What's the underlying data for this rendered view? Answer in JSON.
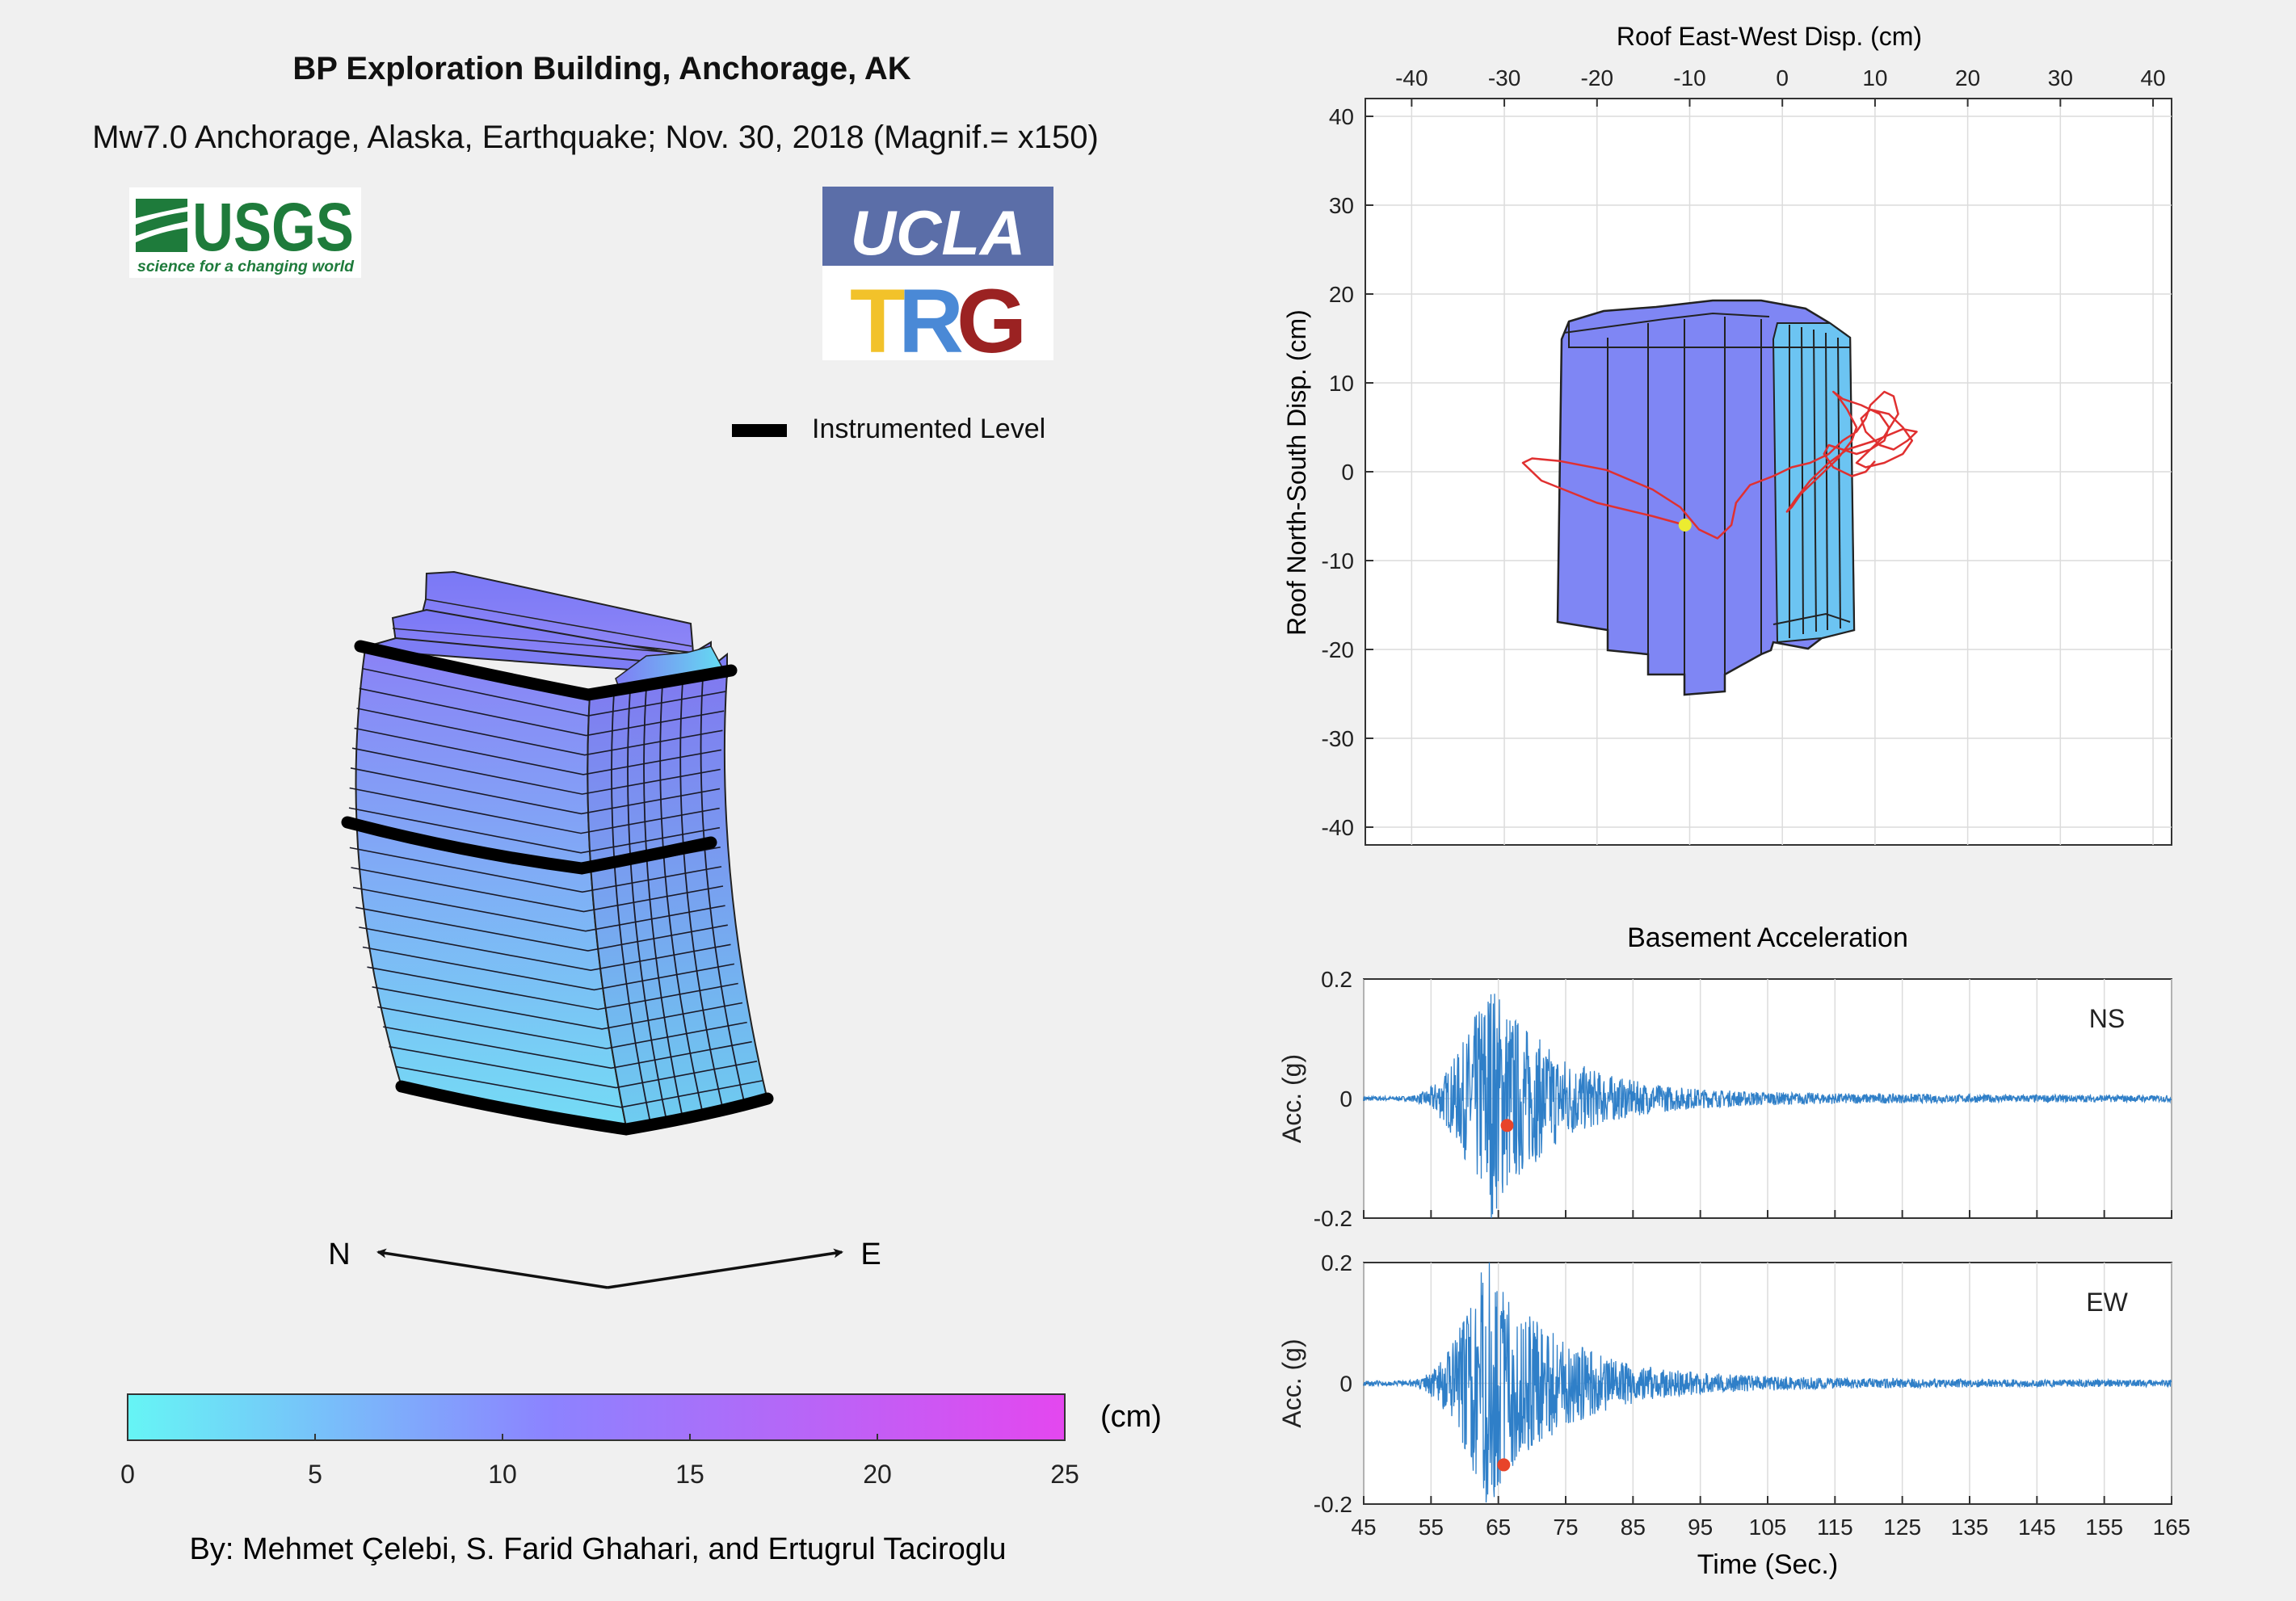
{
  "header": {
    "title": "BP Exploration Building, Anchorage, AK",
    "subtitle": "Mw7.0 Anchorage, Alaska, Earthquake; Nov. 30,  2018 (Magnif.= x150)"
  },
  "logos": {
    "usgs_text": "USGS",
    "usgs_tagline": "science for a changing world",
    "ucla_text": "UCLA",
    "trg_t": "T",
    "trg_r": "R",
    "trg_g": "G"
  },
  "legend": {
    "instrumented_label": "Instrumented Level"
  },
  "compass": {
    "north": "N",
    "east": "E"
  },
  "colorbar": {
    "unit": "(cm)",
    "ticks": [
      "0",
      "5",
      "10",
      "15",
      "20",
      "25"
    ],
    "min": 0,
    "max": 25,
    "start_color": "#66f5f5",
    "mid_color": "#8c83ff",
    "end_color": "#e447ef"
  },
  "credits": "By: Mehmet Çelebi, S. Farid Ghahari, and Ertugrul Taciroglu",
  "colors": {
    "building_top": "#8a82f6",
    "building_bottom": "#74dcf5",
    "orbit_trace": "#e03030",
    "trace": "#2f7fc8",
    "marker_current": "#e8442a",
    "marker_roof": "#ecec30"
  },
  "chart_data": [
    {
      "type": "scatter",
      "title": "",
      "xlabel": "Roof East-West Disp. (cm)",
      "ylabel": "Roof North-South Disp. (cm)",
      "xlim": [
        -45,
        42
      ],
      "ylim": [
        -42,
        42
      ],
      "x_ticks": [
        "-40",
        "-30",
        "-20",
        "-10",
        "0",
        "10",
        "20",
        "30",
        "40"
      ],
      "y_ticks": [
        "40",
        "30",
        "20",
        "10",
        "0",
        "-10",
        "-20",
        "-30",
        "-40"
      ],
      "x_axis_position": "top",
      "grid": true,
      "current_point": {
        "x": -10.5,
        "y": -6
      },
      "orbit": [
        [
          -10.5,
          -6
        ],
        [
          -14,
          -5
        ],
        [
          -20,
          -3.5
        ],
        [
          -26,
          -1
        ],
        [
          -28,
          1
        ],
        [
          -27,
          1.5
        ],
        [
          -24,
          1.2
        ],
        [
          -19,
          0.2
        ],
        [
          -14,
          -2
        ],
        [
          -11,
          -4
        ],
        [
          -9,
          -6.5
        ],
        [
          -7,
          -7.5
        ],
        [
          -5.5,
          -6
        ],
        [
          -5,
          -3.5
        ],
        [
          -3.5,
          -1.5
        ],
        [
          -1,
          -0.5
        ],
        [
          1,
          0.5
        ],
        [
          3,
          1
        ],
        [
          5,
          2
        ],
        [
          6.5,
          3.5
        ],
        [
          8,
          4.5
        ],
        [
          9,
          6
        ],
        [
          9.5,
          7.5
        ],
        [
          11,
          9
        ],
        [
          12,
          8.5
        ],
        [
          12.5,
          6.5
        ],
        [
          11,
          4
        ],
        [
          9,
          2
        ],
        [
          8,
          1
        ],
        [
          9,
          0.5
        ],
        [
          11,
          1
        ],
        [
          13,
          2
        ],
        [
          14,
          3.5
        ],
        [
          13,
          5
        ],
        [
          11.5,
          6.5
        ],
        [
          9.5,
          7
        ],
        [
          8.5,
          6
        ],
        [
          9,
          4.5
        ],
        [
          10.5,
          3
        ],
        [
          12,
          2.5
        ],
        [
          13.5,
          3.5
        ],
        [
          14.5,
          4.5
        ],
        [
          13,
          4.8
        ],
        [
          10,
          3.5
        ],
        [
          7,
          2.5
        ],
        [
          5,
          1
        ],
        [
          3,
          -1
        ],
        [
          1.5,
          -3
        ],
        [
          0.5,
          -4.5
        ],
        [
          1,
          -4
        ],
        [
          2,
          -2.5
        ],
        [
          4,
          -0.5
        ],
        [
          6,
          1.5
        ],
        [
          7.5,
          3.5
        ],
        [
          8,
          5
        ],
        [
          7,
          7
        ],
        [
          6,
          8.5
        ],
        [
          5.5,
          9
        ],
        [
          6.5,
          8.2
        ],
        [
          8.5,
          7.5
        ],
        [
          10.5,
          6.5
        ],
        [
          11.5,
          5
        ],
        [
          11,
          3.5
        ],
        [
          9.5,
          2.5
        ],
        [
          8,
          2
        ],
        [
          6.5,
          2.5
        ],
        [
          5,
          3
        ],
        [
          4.5,
          2
        ],
        [
          5.5,
          0.5
        ],
        [
          7.5,
          -0.5
        ],
        [
          9,
          0
        ],
        [
          10,
          1.2
        ]
      ]
    },
    {
      "type": "line",
      "title": "Basement Acceleration",
      "label": "NS",
      "ylabel": "Acc. (g)",
      "xlim": [
        45,
        165
      ],
      "ylim": [
        -0.2,
        0.2
      ],
      "y_ticks": [
        "0.2",
        "0",
        "-0.2"
      ],
      "x_ticks": [
        "45",
        "55",
        "65",
        "75",
        "85",
        "95",
        "105",
        "115",
        "125",
        "135",
        "145",
        "155",
        "165"
      ],
      "grid": true,
      "current_marker": {
        "x": 66.3,
        "y": -0.045
      },
      "signal": {
        "onset": 51,
        "peak_time": 63.5,
        "peak": 0.2,
        "decay": 0.11,
        "seed": 7
      }
    },
    {
      "type": "line",
      "label": "EW",
      "xlabel": "Time (Sec.)",
      "ylabel": "Acc. (g)",
      "xlim": [
        45,
        165
      ],
      "ylim": [
        -0.2,
        0.2
      ],
      "y_ticks": [
        "0.2",
        "0",
        "-0.2"
      ],
      "x_ticks": [
        "45",
        "55",
        "65",
        "75",
        "85",
        "95",
        "105",
        "115",
        "125",
        "135",
        "145",
        "155",
        "165"
      ],
      "grid": true,
      "current_marker": {
        "x": 65.8,
        "y": -0.135
      },
      "signal": {
        "onset": 51,
        "peak_time": 63,
        "peak": 0.2,
        "decay": 0.1,
        "seed": 19
      }
    }
  ]
}
